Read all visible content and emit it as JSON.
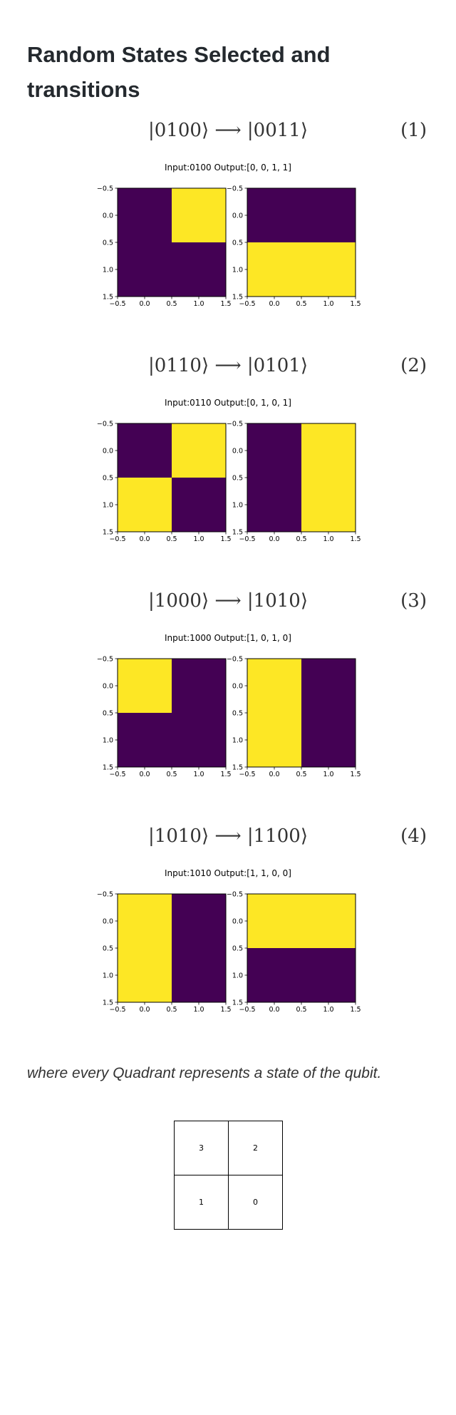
{
  "title": "Random States Selected and transitions",
  "transitions": [
    {
      "formula": "|0100⟩ ⟶ |0011⟩",
      "number": "(1)",
      "caption": "Input:0100 Output:[0, 0, 1, 1]",
      "input_grid": [
        [
          0,
          1
        ],
        [
          0,
          0
        ]
      ],
      "output_grid": [
        [
          0,
          0
        ],
        [
          1,
          1
        ]
      ]
    },
    {
      "formula": "|0110⟩ ⟶ |0101⟩",
      "number": "(2)",
      "caption": "Input:0110 Output:[0, 1, 0, 1]",
      "input_grid": [
        [
          0,
          1
        ],
        [
          1,
          0
        ]
      ],
      "output_grid": [
        [
          0,
          1
        ],
        [
          0,
          1
        ]
      ]
    },
    {
      "formula": "|1000⟩ ⟶ |1010⟩",
      "number": "(3)",
      "caption": "Input:1000 Output:[1, 0, 1, 0]",
      "input_grid": [
        [
          1,
          0
        ],
        [
          0,
          0
        ]
      ],
      "output_grid": [
        [
          1,
          0
        ],
        [
          1,
          0
        ]
      ]
    },
    {
      "formula": "|1010⟩ ⟶ |1100⟩",
      "number": "(4)",
      "caption": "Input:1010 Output:[1, 1, 0, 0]",
      "input_grid": [
        [
          1,
          0
        ],
        [
          1,
          0
        ]
      ],
      "output_grid": [
        [
          1,
          1
        ],
        [
          0,
          0
        ]
      ]
    }
  ],
  "chart_data": {
    "type": "heatmap",
    "x_ticks": [
      "−0.5",
      "0.0",
      "0.5",
      "1.0",
      "1.5"
    ],
    "y_ticks": [
      "−0.5",
      "0.0",
      "0.5",
      "1.0",
      "1.5"
    ],
    "xlim": [
      -0.5,
      1.5
    ],
    "ylim": [
      1.5,
      -0.5
    ],
    "colors": {
      "low": "#440154",
      "high": "#fde725"
    }
  },
  "footnote": "where every Quadrant represents a state of the qubit.",
  "quadrant_table": {
    "rows": [
      [
        "3",
        "2"
      ],
      [
        "1",
        "0"
      ]
    ]
  }
}
